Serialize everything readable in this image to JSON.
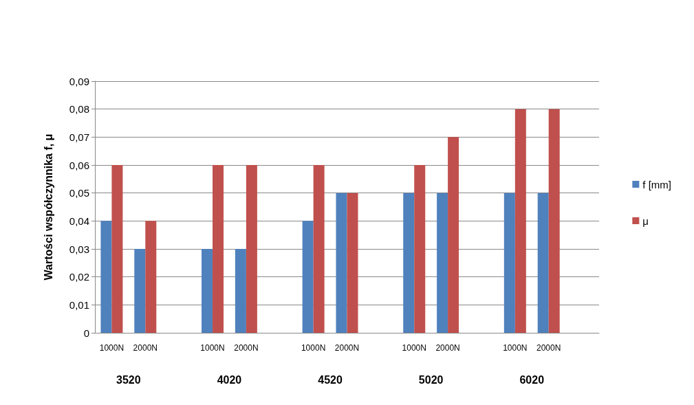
{
  "chart_data": {
    "type": "bar",
    "ylabel": "Wartości współczynnika f, μ",
    "categories": [
      "1000N",
      "2000N",
      null,
      "1000N",
      "2000N",
      null,
      "1000N",
      "2000N",
      null,
      "1000N",
      "2000N",
      null,
      "1000N",
      "2000N",
      null
    ],
    "series": [
      {
        "name": "f [mm]",
        "color": "#4f81bd",
        "values": [
          0.04,
          0.03,
          null,
          0.03,
          0.03,
          null,
          0.04,
          0.05,
          null,
          0.05,
          0.05,
          null,
          0.05,
          0.05,
          null
        ]
      },
      {
        "name": "μ",
        "color": "#c0504d",
        "values": [
          0.06,
          0.04,
          null,
          0.06,
          0.06,
          null,
          0.06,
          0.05,
          null,
          0.06,
          0.07,
          null,
          0.08,
          0.08,
          null
        ]
      }
    ],
    "annotations": [
      "3520",
      "4020",
      "4520",
      "5020",
      "6020"
    ],
    "ylim": [
      0,
      0.09
    ],
    "yticks": [
      0,
      {
        "value": 0.01,
        "label": "0,01"
      },
      {
        "value": 0.02,
        "label": "0,02"
      },
      {
        "value": 0.03,
        "label": "0,03"
      },
      {
        "value": 0.04,
        "label": "0,04"
      },
      {
        "value": 0.05,
        "label": "0,05"
      },
      {
        "value": 0.06,
        "label": "0,06"
      },
      {
        "value": 0.07,
        "label": "0,07"
      },
      {
        "value": 0.08,
        "label": "0,08"
      },
      {
        "value": 0.09,
        "label": "0,09"
      }
    ],
    "grid": "y",
    "legend": "right"
  }
}
